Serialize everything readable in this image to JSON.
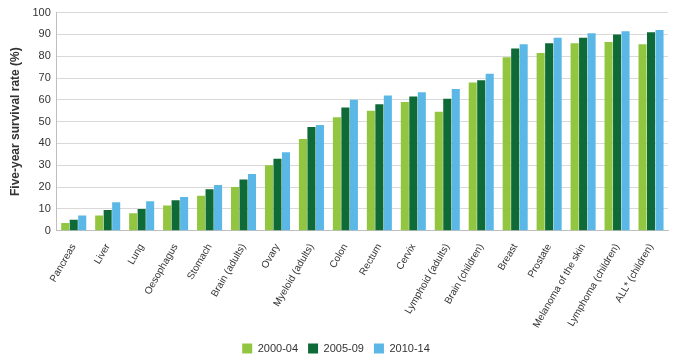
{
  "chart_data": {
    "type": "bar",
    "y_label": "Five-year survival rate (%)",
    "categories": [
      "Pancreas",
      "Liver",
      "Lung",
      "Oesophagus",
      "Stomach",
      "Brain (adults)",
      "Ovary",
      "Myeloid (adults)",
      "Colon",
      "Rectum",
      "Cervix",
      "Lymphoid (adults)",
      "Brain (children)",
      "Breast",
      "Prostate",
      "Melanoma of the skin",
      "Lymphoma (children)",
      "ALL* (children)"
    ],
    "series": [
      {
        "name": "2000-04",
        "color": "#92c640",
        "values": [
          3.5,
          7,
          8,
          11.5,
          16,
          20,
          30,
          42,
          52,
          55,
          59,
          54.5,
          68,
          79.5,
          81.5,
          86,
          86.5,
          85.5
        ]
      },
      {
        "name": "2005-09",
        "color": "#0e6b38",
        "values": [
          5,
          9.5,
          10,
          14,
          19,
          23.5,
          33,
          47.5,
          56.5,
          58,
          61.5,
          60.5,
          69,
          83.5,
          86,
          88.5,
          90,
          91
        ]
      },
      {
        "name": "2010-14",
        "color": "#5bb8e6",
        "values": [
          7,
          13,
          13.5,
          15.5,
          21,
          26,
          36,
          48.5,
          60,
          62,
          63.5,
          65,
          72,
          85.5,
          88.5,
          90.5,
          91.5,
          92
        ]
      }
    ],
    "ylim": [
      0,
      100
    ],
    "yticks": [
      0,
      10,
      20,
      30,
      40,
      50,
      60,
      70,
      80,
      90,
      100
    ],
    "grid": true,
    "legend": "bottom"
  }
}
